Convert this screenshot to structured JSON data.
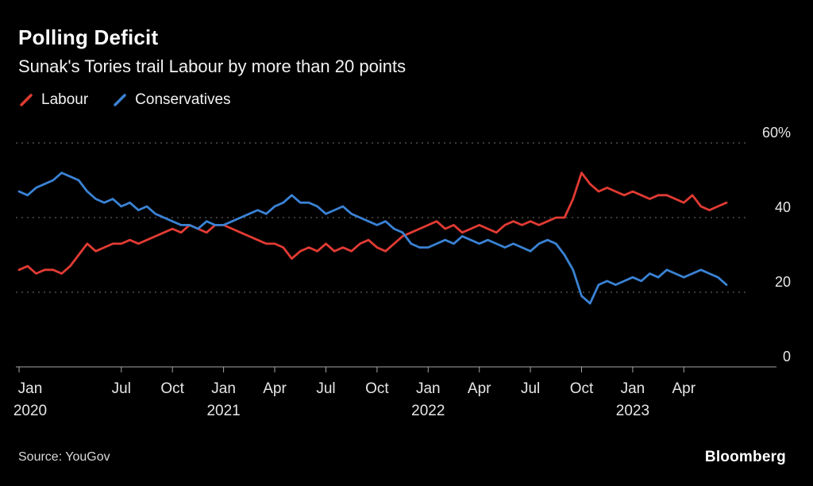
{
  "header": {
    "title": "Polling Deficit",
    "subtitle": "Sunak's Tories trail Labour by more than 20 points"
  },
  "footer": {
    "source": "Source: YouGov",
    "brand": "Bloomberg"
  },
  "chart_data": {
    "type": "line",
    "title": "Polling Deficit",
    "subtitle": "Sunak's Tories trail Labour by more than 20 points",
    "unit": "%",
    "ylim": [
      0,
      60
    ],
    "grid": "dotted-horizontal",
    "legend_position": "top-left",
    "x_unit": "months_since_Jan_2020",
    "x_step": 0.5,
    "yticks": [
      {
        "value": 60,
        "label": "60%"
      },
      {
        "value": 40,
        "label": "40"
      },
      {
        "value": 20,
        "label": "20"
      },
      {
        "value": 0,
        "label": "0"
      }
    ],
    "xticks": [
      {
        "month": 0,
        "label": "Jan",
        "year": "2020"
      },
      {
        "month": 6,
        "label": "Jul"
      },
      {
        "month": 9,
        "label": "Oct"
      },
      {
        "month": 12,
        "label": "Jan",
        "year": "2021"
      },
      {
        "month": 15,
        "label": "Apr"
      },
      {
        "month": 18,
        "label": "Jul"
      },
      {
        "month": 21,
        "label": "Oct"
      },
      {
        "month": 24,
        "label": "Jan",
        "year": "2022"
      },
      {
        "month": 27,
        "label": "Apr"
      },
      {
        "month": 30,
        "label": "Jul"
      },
      {
        "month": 33,
        "label": "Oct"
      },
      {
        "month": 36,
        "label": "Jan",
        "year": "2023"
      },
      {
        "month": 39,
        "label": "Apr"
      }
    ],
    "series": [
      {
        "name": "Labour",
        "color": "#e23b34",
        "values": [
          26,
          27,
          25,
          26,
          26,
          25,
          27,
          30,
          33,
          31,
          32,
          33,
          33,
          34,
          33,
          34,
          35,
          36,
          37,
          36,
          38,
          37,
          36,
          38,
          38,
          37,
          36,
          35,
          34,
          33,
          33,
          32,
          29,
          31,
          32,
          31,
          33,
          31,
          32,
          31,
          33,
          34,
          32,
          31,
          33,
          35,
          36,
          37,
          38,
          39,
          37,
          38,
          36,
          37,
          38,
          37,
          36,
          38,
          39,
          38,
          39,
          38,
          39,
          40,
          40,
          45,
          52,
          49,
          47,
          48,
          47,
          46,
          47,
          46,
          45,
          46,
          46,
          45,
          44,
          46,
          43,
          42,
          43,
          44
        ]
      },
      {
        "name": "Conservatives",
        "color": "#3a82d4",
        "values": [
          47,
          46,
          48,
          49,
          50,
          52,
          51,
          50,
          47,
          45,
          44,
          45,
          43,
          44,
          42,
          43,
          41,
          40,
          39,
          38,
          38,
          37,
          39,
          38,
          38,
          39,
          40,
          41,
          42,
          41,
          43,
          44,
          46,
          44,
          44,
          43,
          41,
          42,
          43,
          41,
          40,
          39,
          38,
          39,
          37,
          36,
          33,
          32,
          32,
          33,
          34,
          33,
          35,
          34,
          33,
          34,
          33,
          32,
          33,
          32,
          31,
          33,
          34,
          33,
          30,
          26,
          19,
          17,
          22,
          23,
          22,
          23,
          24,
          23,
          25,
          24,
          26,
          25,
          24,
          25,
          26,
          25,
          24,
          22
        ]
      }
    ]
  }
}
